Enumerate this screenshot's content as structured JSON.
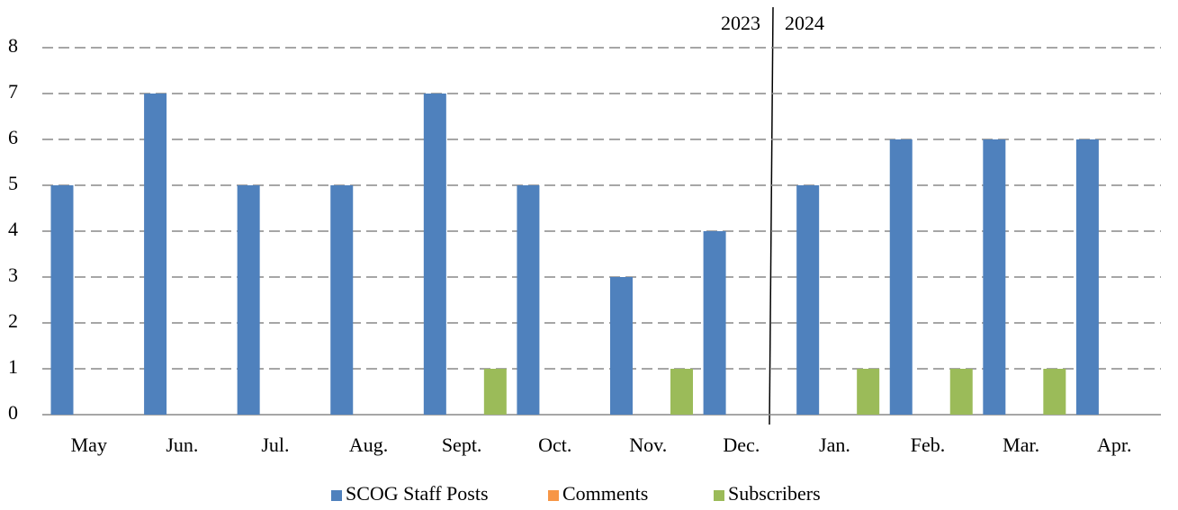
{
  "chart_data": {
    "type": "bar",
    "categories": [
      "May",
      "Jun.",
      "Jul.",
      "Aug.",
      "Sept.",
      "Oct.",
      "Nov.",
      "Dec.",
      "Jan.",
      "Feb.",
      "Mar.",
      "Apr."
    ],
    "series": [
      {
        "name": "SCOG Staff Posts",
        "color": "#4f81bd",
        "values": [
          5,
          7,
          5,
          5,
          7,
          5,
          3,
          4,
          5,
          6,
          6,
          6
        ]
      },
      {
        "name": "Comments",
        "color": "#f79646",
        "values": [
          0,
          0,
          0,
          0,
          0,
          0,
          0,
          0,
          0,
          0,
          0,
          0
        ]
      },
      {
        "name": "Subscribers",
        "color": "#9bbb59",
        "values": [
          0,
          0,
          0,
          0,
          1,
          0,
          1,
          0,
          1,
          1,
          1,
          0
        ]
      }
    ],
    "annotations": [
      "2023",
      "2024"
    ],
    "ylim": [
      0,
      8
    ],
    "yticks": [
      0,
      1,
      2,
      3,
      4,
      5,
      6,
      7,
      8
    ],
    "grid": true,
    "legend": "bottom"
  }
}
